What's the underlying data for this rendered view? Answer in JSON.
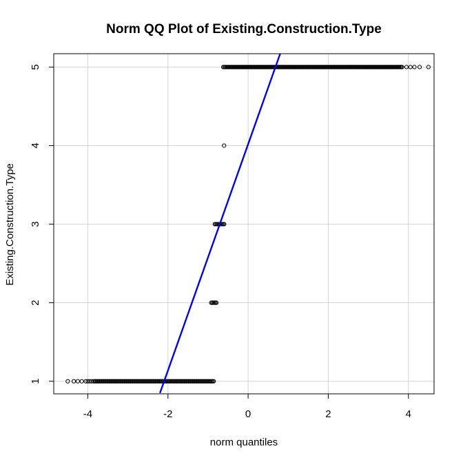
{
  "chart_data": {
    "type": "scatter",
    "title": "Norm QQ Plot of Existing.Construction.Type",
    "xlabel": "norm quantiles",
    "ylabel": "Existing.Construction.Type",
    "xlim": [
      -4.85,
      4.64
    ],
    "ylim": [
      0.84,
      5.17
    ],
    "x_ticks": [
      -4,
      -2,
      0,
      2,
      4
    ],
    "y_ticks": [
      1,
      2,
      3,
      4,
      5
    ],
    "grid": true,
    "point_color": "#000000",
    "line_color": "#0000ff",
    "groups": [
      {
        "y": 1,
        "x_dense_range": [
          -3.85,
          -0.85
        ],
        "x_sparse": [
          -4.5,
          -4.35,
          -4.25,
          -4.15,
          -4.05,
          -4.0,
          -3.95,
          -3.9
        ]
      },
      {
        "y": 2,
        "x_dense_range": [
          -0.92,
          -0.78
        ],
        "x_sparse": []
      },
      {
        "y": 3,
        "x_dense_range": [
          -0.83,
          -0.58
        ],
        "x_sparse": []
      },
      {
        "y": 4,
        "x_dense_range": null,
        "x_sparse": [
          -0.6
        ]
      },
      {
        "y": 5,
        "x_dense_range": [
          -0.62,
          3.85
        ],
        "x_sparse": [
          3.95,
          4.05,
          4.15,
          4.28,
          4.5
        ]
      }
    ],
    "reference_line": {
      "x1": -2.2,
      "y1": 0.85,
      "x2": 0.8,
      "y2": 5.17
    }
  }
}
